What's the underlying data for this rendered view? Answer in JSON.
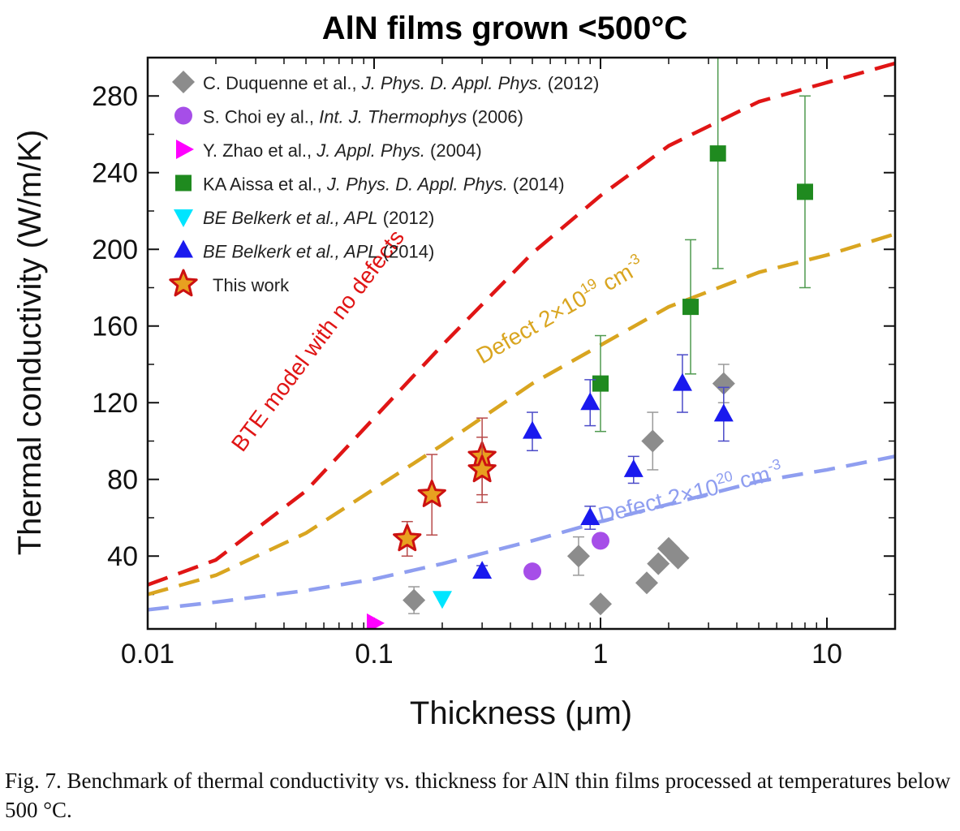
{
  "chart_data": {
    "type": "scatter",
    "title": "AlN films grown <500°C",
    "xlabel": "Thickness (μm)",
    "ylabel": "Thermal conductivity (W/m/K)",
    "x_scale": "log",
    "xlim": [
      0.01,
      20
    ],
    "ylim": [
      2,
      300
    ],
    "x_ticks": [
      {
        "value": 0.01,
        "label": "0.01"
      },
      {
        "value": 0.1,
        "label": "0.1"
      },
      {
        "value": 1,
        "label": "1"
      },
      {
        "value": 10,
        "label": "10"
      }
    ],
    "y_ticks": [
      {
        "value": 40,
        "label": "40"
      },
      {
        "value": 80,
        "label": "80"
      },
      {
        "value": 120,
        "label": "120"
      },
      {
        "value": 160,
        "label": "160"
      },
      {
        "value": 200,
        "label": "200"
      },
      {
        "value": 240,
        "label": "240"
      },
      {
        "value": 280,
        "label": "280"
      }
    ],
    "grid": false,
    "legend_position": "top-left",
    "series": [
      {
        "legend": {
          "plain": "C. Duquenne et al., ",
          "italic": "J. Phys. D. Appl. Phys.",
          "tail": " (2012)"
        },
        "marker": "diamond",
        "color": "#8c8c8c",
        "errorbar_color": "#9a9a9a",
        "points": [
          {
            "x": 0.15,
            "y": 17,
            "yerr": 7
          },
          {
            "x": 0.8,
            "y": 40,
            "yerr": 10
          },
          {
            "x": 1.0,
            "y": 15
          },
          {
            "x": 1.6,
            "y": 26
          },
          {
            "x": 1.7,
            "y": 100,
            "yerr": 15
          },
          {
            "x": 1.8,
            "y": 36
          },
          {
            "x": 2.0,
            "y": 44
          },
          {
            "x": 2.2,
            "y": 39
          },
          {
            "x": 3.5,
            "y": 130,
            "yerr": 10
          }
        ]
      },
      {
        "legend": {
          "plain": "S. Choi ey al., ",
          "italic": "Int. J. Thermophys",
          "tail": " (2006)"
        },
        "marker": "circle",
        "color": "#a64ee8",
        "points": [
          {
            "x": 0.5,
            "y": 32
          },
          {
            "x": 1.0,
            "y": 48
          }
        ]
      },
      {
        "legend": {
          "plain": "Y. Zhao et al., ",
          "italic": "J. Appl. Phys.",
          "tail": " (2004)"
        },
        "marker": "triangle-right",
        "color": "#ff00ff",
        "points": [
          {
            "x": 0.1,
            "y": 5
          }
        ]
      },
      {
        "legend": {
          "plain": "KA Aissa et al., ",
          "italic": "J. Phys. D. Appl. Phys.",
          "tail": " (2014)"
        },
        "marker": "square",
        "color": "#1f8a1f",
        "errorbar_color": "#4f9a4f",
        "points": [
          {
            "x": 1.0,
            "y": 130,
            "yerr": 25
          },
          {
            "x": 2.5,
            "y": 170,
            "yerr": 35
          },
          {
            "x": 3.3,
            "y": 250,
            "yerr": 60
          },
          {
            "x": 8.0,
            "y": 230,
            "yerr": 50
          }
        ]
      },
      {
        "legend": {
          "plain": "",
          "italic": "BE Belkerk et al., APL",
          "tail": " (2012)"
        },
        "marker": "triangle-down",
        "color": "#00e5ff",
        "points": [
          {
            "x": 0.2,
            "y": 18
          }
        ]
      },
      {
        "legend": {
          "plain": "",
          "italic": "BE Belkerk et al., APL",
          "tail": " (2014)"
        },
        "marker": "triangle-up",
        "color": "#1a1aee",
        "errorbar_color": "#4a4ac8",
        "points": [
          {
            "x": 0.3,
            "y": 32,
            "yerr": 3
          },
          {
            "x": 0.5,
            "y": 105,
            "yerr": 10
          },
          {
            "x": 0.9,
            "y": 60,
            "yerr": 6
          },
          {
            "x": 0.9,
            "y": 120,
            "yerr": 12
          },
          {
            "x": 1.4,
            "y": 85,
            "yerr": 7
          },
          {
            "x": 2.3,
            "y": 130,
            "yerr": 15
          },
          {
            "x": 3.5,
            "y": 114,
            "yerr": 14
          }
        ]
      },
      {
        "legend": {
          "plain": "This work",
          "italic": "",
          "tail": ""
        },
        "marker": "star",
        "color": "#e8a020",
        "stroke": "#cc1111",
        "errorbar_color": "#b84a4a",
        "points": [
          {
            "x": 0.14,
            "y": 49,
            "yerr": 9
          },
          {
            "x": 0.18,
            "y": 72,
            "yerr": 21
          },
          {
            "x": 0.3,
            "y": 92,
            "yerr": 20
          },
          {
            "x": 0.3,
            "y": 85,
            "yerr": 17
          }
        ]
      }
    ],
    "curves": [
      {
        "label": "BTE model with no defects",
        "color": "#e01515",
        "x": [
          0.01,
          0.02,
          0.05,
          0.1,
          0.2,
          0.5,
          1,
          2,
          5,
          10,
          20
        ],
        "y": [
          25,
          38,
          74,
          112,
          150,
          198,
          228,
          254,
          277,
          287,
          297
        ]
      },
      {
        "label": "Defect 2×10",
        "label_sup": "19",
        "label_tail": " cm",
        "label_sup2": "-3",
        "color": "#d9a520",
        "x": [
          0.01,
          0.02,
          0.05,
          0.1,
          0.2,
          0.5,
          1,
          2,
          5,
          10,
          20
        ],
        "y": [
          20,
          30,
          52,
          75,
          98,
          130,
          150,
          170,
          188,
          197,
          208
        ]
      },
      {
        "label": "Defect 2×10",
        "label_sup": "20",
        "label_tail": " cm",
        "label_sup2": "-3",
        "color": "#8f9ef0",
        "x": [
          0.01,
          0.02,
          0.05,
          0.1,
          0.2,
          0.5,
          1,
          2,
          5,
          10,
          20
        ],
        "y": [
          12,
          16,
          22,
          28,
          36,
          48,
          58,
          67,
          79,
          85,
          92
        ]
      }
    ]
  },
  "caption": "Fig. 7. Benchmark of thermal conductivity vs. thickness for AlN thin films processed at temperatures below 500 °C."
}
